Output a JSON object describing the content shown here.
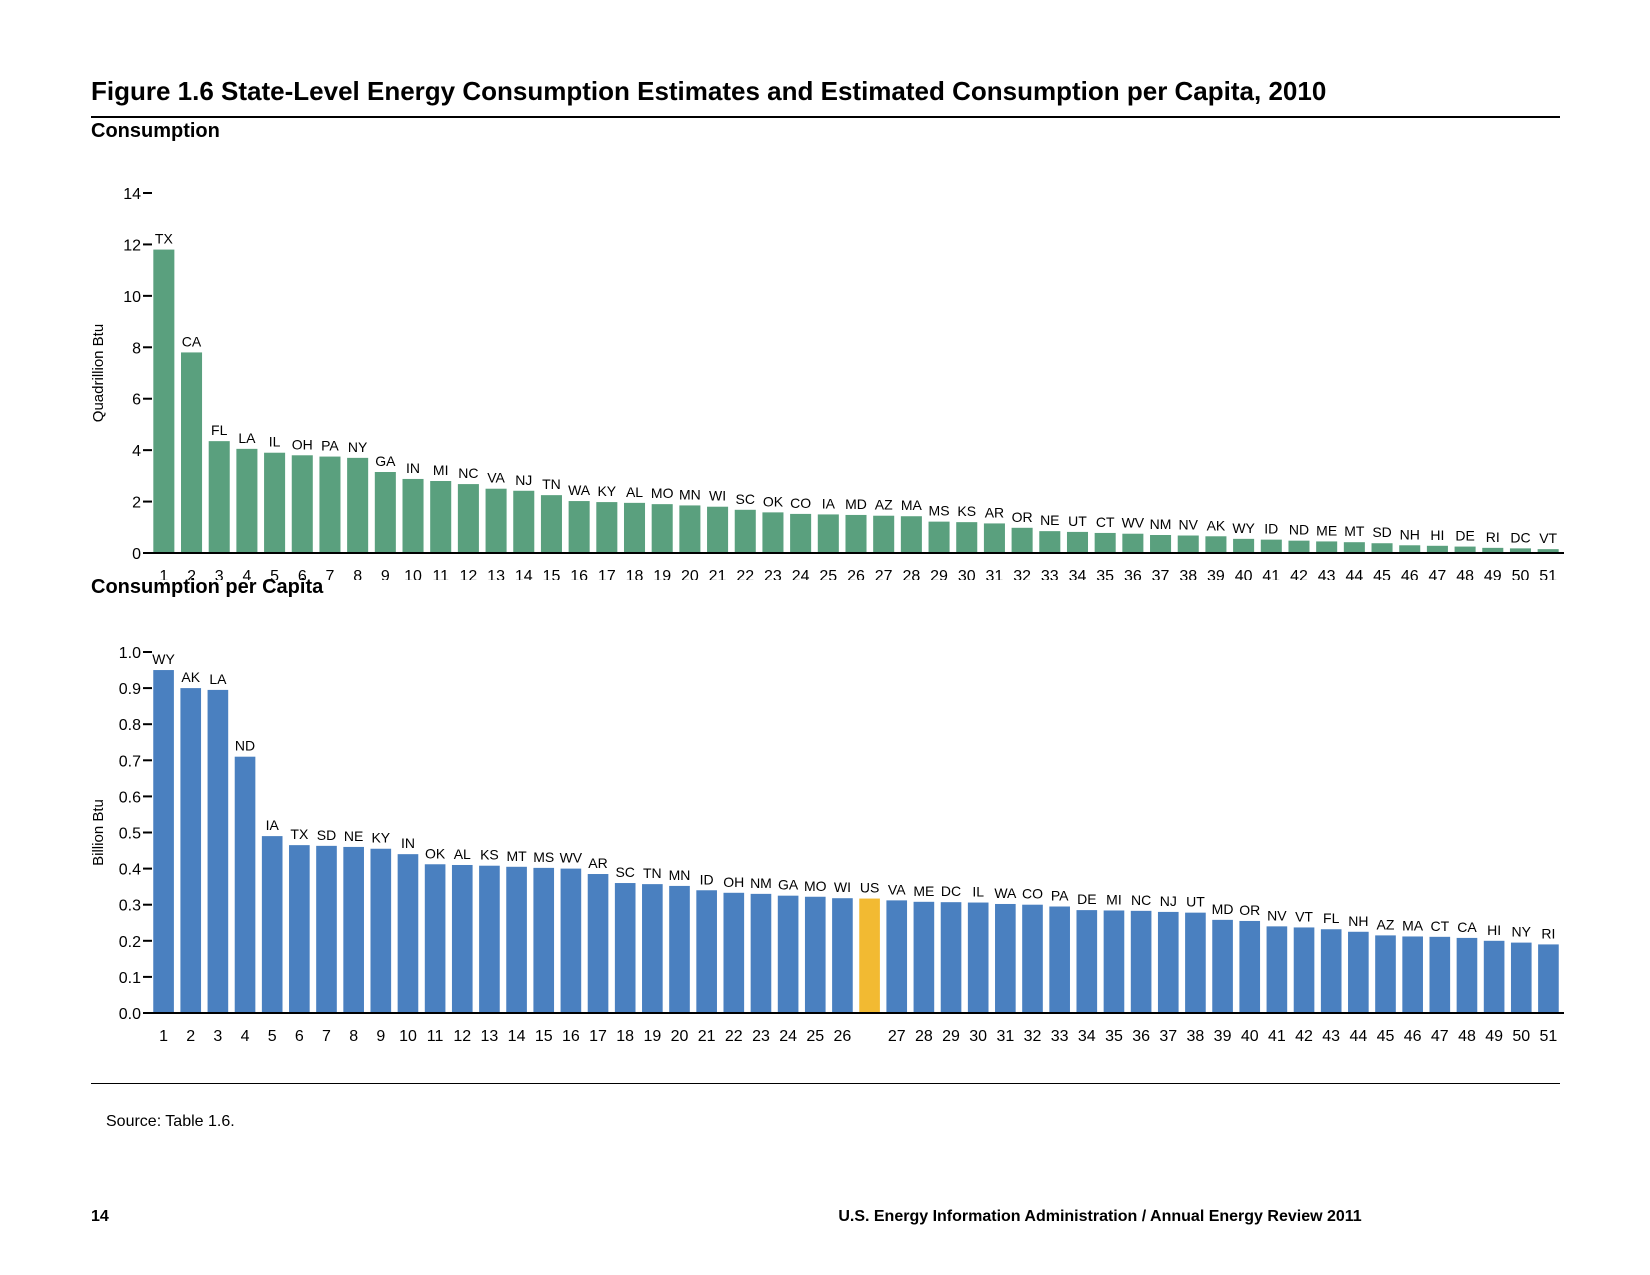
{
  "figure": {
    "title": "Figure 1.6  State-Level Energy Consumption Estimates and Estimated Consumption per Capita, 2010",
    "source": "Source:  Table 1.6.",
    "page_number": "14",
    "footer": "U.S. Energy Information Administration / Annual Energy Review 2011"
  },
  "colors": {
    "consumption_bar": "#5aa07e",
    "per_capita_bar": "#4a80c0",
    "us_bar": "#f2ba32"
  },
  "chart_data": [
    {
      "type": "bar",
      "title": "Consumption",
      "ylabel": "Quadrillion Btu",
      "ylim": [
        0,
        14
      ],
      "yticks": [
        0,
        2,
        4,
        6,
        8,
        10,
        12,
        14
      ],
      "ytick_labels": [
        "0",
        "2",
        "4",
        "6",
        "8",
        "10",
        "12",
        "14"
      ],
      "grid": false,
      "categories": [
        "TX",
        "CA",
        "FL",
        "LA",
        "IL",
        "OH",
        "PA",
        "NY",
        "GA",
        "IN",
        "MI",
        "NC",
        "VA",
        "NJ",
        "TN",
        "WA",
        "KY",
        "AL",
        "MO",
        "MN",
        "WI",
        "SC",
        "OK",
        "CO",
        "IA",
        "MD",
        "AZ",
        "MA",
        "MS",
        "KS",
        "AR",
        "OR",
        "NE",
        "UT",
        "CT",
        "WV",
        "NM",
        "NV",
        "AK",
        "WY",
        "ID",
        "ND",
        "ME",
        "MT",
        "SD",
        "NH",
        "HI",
        "DE",
        "RI",
        "DC",
        "VT"
      ],
      "ranks": [
        "1",
        "2",
        "3",
        "4",
        "5",
        "6",
        "7",
        "8",
        "9",
        "10",
        "11",
        "12",
        "13",
        "14",
        "15",
        "16",
        "17",
        "18",
        "19",
        "20",
        "21",
        "22",
        "23",
        "24",
        "25",
        "26",
        "27",
        "28",
        "29",
        "30",
        "31",
        "32",
        "33",
        "34",
        "35",
        "36",
        "37",
        "38",
        "39",
        "40",
        "41",
        "42",
        "43",
        "44",
        "45",
        "46",
        "47",
        "48",
        "49",
        "50",
        "51"
      ],
      "values": [
        11.8,
        7.8,
        4.35,
        4.05,
        3.9,
        3.8,
        3.75,
        3.7,
        3.15,
        2.88,
        2.8,
        2.68,
        2.5,
        2.42,
        2.25,
        2.02,
        1.98,
        1.95,
        1.9,
        1.85,
        1.8,
        1.68,
        1.58,
        1.52,
        1.5,
        1.48,
        1.45,
        1.43,
        1.22,
        1.2,
        1.15,
        0.98,
        0.85,
        0.82,
        0.78,
        0.75,
        0.7,
        0.68,
        0.65,
        0.55,
        0.52,
        0.48,
        0.45,
        0.42,
        0.38,
        0.3,
        0.28,
        0.25,
        0.2,
        0.18,
        0.15
      ]
    },
    {
      "type": "bar",
      "title": "Consumption per Capita",
      "ylabel": "Billion Btu",
      "ylim": [
        0,
        1.0
      ],
      "yticks": [
        0,
        0.1,
        0.2,
        0.3,
        0.4,
        0.5,
        0.6,
        0.7,
        0.8,
        0.9,
        1.0
      ],
      "ytick_labels": [
        "0.0",
        "0.1",
        "0.2",
        "0.3",
        "0.4",
        "0.5",
        "0.6",
        "0.7",
        "0.8",
        "0.9",
        "1.0"
      ],
      "grid": false,
      "highlight": "US",
      "categories": [
        "WY",
        "AK",
        "LA",
        "ND",
        "IA",
        "TX",
        "SD",
        "NE",
        "KY",
        "IN",
        "OK",
        "AL",
        "KS",
        "MT",
        "MS",
        "WV",
        "AR",
        "SC",
        "TN",
        "MN",
        "ID",
        "OH",
        "NM",
        "GA",
        "MO",
        "WI",
        "US",
        "VA",
        "ME",
        "DC",
        "IL",
        "WA",
        "CO",
        "PA",
        "DE",
        "MI",
        "NC",
        "NJ",
        "UT",
        "MD",
        "OR",
        "NV",
        "VT",
        "FL",
        "NH",
        "AZ",
        "MA",
        "CT",
        "CA",
        "HI",
        "NY",
        "RI"
      ],
      "ranks": [
        "1",
        "2",
        "3",
        "4",
        "5",
        "6",
        "7",
        "8",
        "9",
        "10",
        "11",
        "12",
        "13",
        "14",
        "15",
        "16",
        "17",
        "18",
        "19",
        "20",
        "21",
        "22",
        "23",
        "24",
        "25",
        "26",
        "",
        "27",
        "28",
        "29",
        "30",
        "31",
        "32",
        "33",
        "34",
        "35",
        "36",
        "37",
        "38",
        "39",
        "40",
        "41",
        "42",
        "43",
        "44",
        "45",
        "46",
        "47",
        "48",
        "49",
        "50",
        "51"
      ],
      "values": [
        0.95,
        0.9,
        0.895,
        0.71,
        0.49,
        0.465,
        0.463,
        0.46,
        0.455,
        0.44,
        0.412,
        0.41,
        0.408,
        0.405,
        0.402,
        0.4,
        0.385,
        0.36,
        0.357,
        0.352,
        0.34,
        0.333,
        0.33,
        0.325,
        0.322,
        0.318,
        0.317,
        0.312,
        0.308,
        0.307,
        0.306,
        0.302,
        0.3,
        0.295,
        0.285,
        0.284,
        0.283,
        0.28,
        0.278,
        0.258,
        0.255,
        0.24,
        0.237,
        0.232,
        0.225,
        0.215,
        0.212,
        0.211,
        0.208,
        0.2,
        0.195,
        0.19
      ]
    }
  ]
}
